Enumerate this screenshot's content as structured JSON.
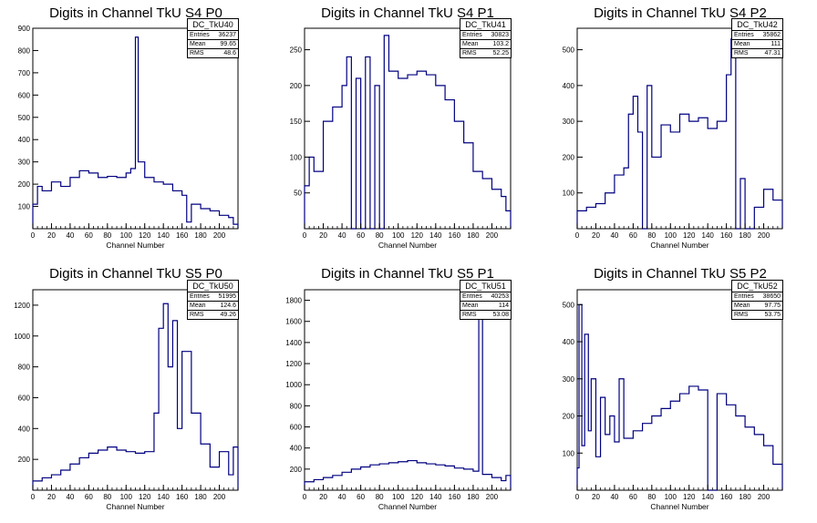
{
  "panels": [
    {
      "title": "Digits in Channel TkU S4 P0",
      "stats": {
        "name": "DC_TkU40",
        "entries": "36237",
        "mean": "99.65",
        "rms": "48.6"
      },
      "xlabel": "Channel Number",
      "xlim": [
        0,
        220
      ],
      "ylim": [
        0,
        900
      ],
      "xticks": [
        0,
        20,
        40,
        60,
        80,
        100,
        120,
        140,
        160,
        180,
        200
      ],
      "yticks": [
        100,
        200,
        300,
        400,
        500,
        600,
        700,
        800,
        900
      ]
    },
    {
      "title": "Digits in Channel TkU S4 P1",
      "stats": {
        "name": "DC_TkU41",
        "entries": "30823",
        "mean": "103.2",
        "rms": "52.25"
      },
      "xlabel": "Channel Number",
      "xlim": [
        0,
        220
      ],
      "ylim": [
        0,
        280
      ],
      "xticks": [
        0,
        20,
        40,
        60,
        80,
        100,
        120,
        140,
        160,
        180,
        200
      ],
      "yticks": [
        50,
        100,
        150,
        200,
        250
      ]
    },
    {
      "title": "Digits in Channel TkU S4 P2",
      "stats": {
        "name": "DC_TkU42",
        "entries": "35862",
        "mean": "111",
        "rms": "47.31"
      },
      "xlabel": "Channel Number",
      "xlim": [
        0,
        220
      ],
      "ylim": [
        0,
        560
      ],
      "xticks": [
        0,
        20,
        40,
        60,
        80,
        100,
        120,
        140,
        160,
        180,
        200
      ],
      "yticks": [
        100,
        200,
        300,
        400,
        500
      ]
    },
    {
      "title": "Digits in Channel TkU S5 P0",
      "stats": {
        "name": "DC_TkU50",
        "entries": "51995",
        "mean": "124.6",
        "rms": "49.26"
      },
      "xlabel": "Channel Number",
      "xlim": [
        0,
        220
      ],
      "ylim": [
        0,
        1300
      ],
      "xticks": [
        0,
        20,
        40,
        60,
        80,
        100,
        120,
        140,
        160,
        180,
        200
      ],
      "yticks": [
        200,
        400,
        600,
        800,
        1000,
        1200
      ]
    },
    {
      "title": "Digits in Channel TkU S5 P1",
      "stats": {
        "name": "DC_TkU51",
        "entries": "40253",
        "mean": "114",
        "rms": "53.08"
      },
      "xlabel": "Channel Number",
      "xlim": [
        0,
        220
      ],
      "ylim": [
        0,
        1900
      ],
      "xticks": [
        0,
        20,
        40,
        60,
        80,
        100,
        120,
        140,
        160,
        180,
        200
      ],
      "yticks": [
        200,
        400,
        600,
        800,
        1000,
        1200,
        1400,
        1600,
        1800
      ]
    },
    {
      "title": "Digits in Channel TkU S5 P2",
      "stats": {
        "name": "DC_TkU52",
        "entries": "38650",
        "mean": "97.75",
        "rms": "53.75"
      },
      "xlabel": "Channel Number",
      "xlim": [
        0,
        220
      ],
      "ylim": [
        0,
        540
      ],
      "xticks": [
        0,
        20,
        40,
        60,
        80,
        100,
        120,
        140,
        160,
        180,
        200
      ],
      "yticks": [
        100,
        200,
        300,
        400,
        500
      ]
    }
  ],
  "stat_labels": {
    "entries": "Entries",
    "mean": "Mean",
    "rms": "RMS"
  },
  "colors": {
    "histogram": "#000080",
    "axis": "#000000"
  },
  "chart_data": [
    {
      "type": "bar",
      "title": "Digits in Channel TkU S4 P0",
      "xlabel": "Channel Number",
      "ylabel": "",
      "xlim": [
        0,
        220
      ],
      "ylim": [
        0,
        900
      ],
      "bin_width": 1,
      "x": [
        0,
        5,
        10,
        20,
        30,
        40,
        50,
        60,
        70,
        80,
        90,
        100,
        105,
        110,
        113,
        120,
        130,
        140,
        150,
        160,
        165,
        170,
        180,
        190,
        200,
        210,
        215
      ],
      "values": [
        110,
        190,
        170,
        210,
        190,
        230,
        260,
        250,
        230,
        235,
        230,
        250,
        270,
        860,
        300,
        230,
        210,
        200,
        170,
        150,
        30,
        110,
        90,
        80,
        60,
        50,
        20
      ],
      "series": [
        {
          "name": "DC_TkU40",
          "x": [
            0,
            5,
            10,
            20,
            30,
            40,
            50,
            60,
            70,
            80,
            90,
            100,
            105,
            110,
            113,
            120,
            130,
            140,
            150,
            160,
            165,
            170,
            180,
            190,
            200,
            210,
            215
          ],
          "values": [
            110,
            190,
            170,
            210,
            190,
            230,
            260,
            250,
            230,
            235,
            230,
            250,
            270,
            860,
            300,
            230,
            210,
            200,
            170,
            150,
            30,
            110,
            90,
            80,
            60,
            50,
            20
          ]
        }
      ]
    },
    {
      "type": "bar",
      "title": "Digits in Channel TkU S4 P1",
      "xlabel": "Channel Number",
      "ylabel": "",
      "xlim": [
        0,
        220
      ],
      "ylim": [
        0,
        280
      ],
      "bin_width": 1,
      "x": [
        0,
        5,
        10,
        20,
        30,
        40,
        45,
        50,
        55,
        60,
        65,
        70,
        75,
        80,
        85,
        90,
        100,
        110,
        120,
        130,
        140,
        150,
        160,
        170,
        180,
        190,
        200,
        210,
        215
      ],
      "values": [
        60,
        100,
        80,
        150,
        170,
        200,
        240,
        0,
        210,
        0,
        240,
        0,
        200,
        0,
        270,
        220,
        210,
        215,
        220,
        215,
        200,
        180,
        150,
        120,
        80,
        70,
        55,
        45,
        25
      ],
      "series": [
        {
          "name": "DC_TkU41",
          "x": [
            0,
            5,
            10,
            20,
            30,
            40,
            45,
            50,
            55,
            60,
            65,
            70,
            75,
            80,
            85,
            90,
            100,
            110,
            120,
            130,
            140,
            150,
            160,
            170,
            180,
            190,
            200,
            210,
            215
          ],
          "values": [
            60,
            100,
            80,
            150,
            170,
            200,
            240,
            0,
            210,
            0,
            240,
            0,
            200,
            0,
            270,
            220,
            210,
            215,
            220,
            215,
            200,
            180,
            150,
            120,
            80,
            70,
            55,
            45,
            25
          ]
        }
      ]
    },
    {
      "type": "bar",
      "title": "Digits in Channel TkU S4 P2",
      "xlabel": "Channel Number",
      "ylabel": "",
      "xlim": [
        0,
        220
      ],
      "ylim": [
        0,
        560
      ],
      "bin_width": 1,
      "x": [
        0,
        10,
        20,
        30,
        40,
        50,
        55,
        60,
        65,
        70,
        75,
        80,
        90,
        100,
        110,
        120,
        130,
        140,
        150,
        160,
        165,
        170,
        175,
        180,
        190,
        200,
        210
      ],
      "values": [
        50,
        60,
        70,
        100,
        150,
        170,
        320,
        370,
        270,
        0,
        400,
        200,
        290,
        270,
        320,
        300,
        310,
        280,
        300,
        430,
        530,
        0,
        140,
        0,
        60,
        110,
        80
      ],
      "series": [
        {
          "name": "DC_TkU42",
          "x": [
            0,
            10,
            20,
            30,
            40,
            50,
            55,
            60,
            65,
            70,
            75,
            80,
            90,
            100,
            110,
            120,
            130,
            140,
            150,
            160,
            165,
            170,
            175,
            180,
            190,
            200,
            210
          ],
          "values": [
            50,
            60,
            70,
            100,
            150,
            170,
            320,
            370,
            270,
            0,
            400,
            200,
            290,
            270,
            320,
            300,
            310,
            280,
            300,
            430,
            530,
            0,
            140,
            0,
            60,
            110,
            80
          ]
        }
      ]
    },
    {
      "type": "bar",
      "title": "Digits in Channel TkU S5 P0",
      "xlabel": "Channel Number",
      "ylabel": "",
      "xlim": [
        0,
        220
      ],
      "ylim": [
        0,
        1300
      ],
      "bin_width": 1,
      "x": [
        0,
        10,
        20,
        30,
        40,
        50,
        60,
        70,
        80,
        90,
        100,
        110,
        120,
        130,
        135,
        140,
        145,
        150,
        155,
        160,
        170,
        180,
        190,
        200,
        210,
        215
      ],
      "values": [
        60,
        80,
        100,
        130,
        170,
        210,
        240,
        260,
        280,
        260,
        250,
        240,
        250,
        500,
        1050,
        1210,
        800,
        1100,
        400,
        900,
        500,
        300,
        150,
        250,
        100,
        280
      ],
      "series": [
        {
          "name": "DC_TkU50",
          "x": [
            0,
            10,
            20,
            30,
            40,
            50,
            60,
            70,
            80,
            90,
            100,
            110,
            120,
            130,
            135,
            140,
            145,
            150,
            155,
            160,
            170,
            180,
            190,
            200,
            210,
            215
          ],
          "values": [
            60,
            80,
            100,
            130,
            170,
            210,
            240,
            260,
            280,
            260,
            250,
            240,
            250,
            500,
            1050,
            1210,
            800,
            1100,
            400,
            900,
            500,
            300,
            150,
            250,
            100,
            280
          ]
        }
      ]
    },
    {
      "type": "bar",
      "title": "Digits in Channel TkU S5 P1",
      "xlabel": "Channel Number",
      "ylabel": "",
      "xlim": [
        0,
        220
      ],
      "ylim": [
        0,
        1900
      ],
      "bin_width": 1,
      "x": [
        0,
        10,
        20,
        30,
        40,
        50,
        60,
        70,
        80,
        90,
        100,
        110,
        120,
        130,
        140,
        150,
        160,
        170,
        180,
        186,
        190,
        200,
        210,
        215
      ],
      "values": [
        80,
        100,
        120,
        140,
        170,
        200,
        220,
        240,
        250,
        260,
        270,
        280,
        260,
        250,
        240,
        230,
        210,
        200,
        180,
        1720,
        150,
        120,
        90,
        140
      ],
      "series": [
        {
          "name": "DC_TkU51",
          "x": [
            0,
            10,
            20,
            30,
            40,
            50,
            60,
            70,
            80,
            90,
            100,
            110,
            120,
            130,
            140,
            150,
            160,
            170,
            180,
            186,
            190,
            200,
            210,
            215
          ],
          "values": [
            80,
            100,
            120,
            140,
            170,
            200,
            220,
            240,
            250,
            260,
            270,
            280,
            260,
            250,
            240,
            230,
            210,
            200,
            180,
            1720,
            150,
            120,
            90,
            140
          ]
        }
      ]
    },
    {
      "type": "bar",
      "title": "Digits in Channel TkU S5 P2",
      "xlabel": "Channel Number",
      "ylabel": "",
      "xlim": [
        0,
        220
      ],
      "ylim": [
        0,
        540
      ],
      "bin_width": 1,
      "x": [
        0,
        2,
        5,
        8,
        12,
        15,
        20,
        25,
        30,
        35,
        40,
        45,
        50,
        60,
        70,
        80,
        90,
        100,
        110,
        120,
        130,
        140,
        150,
        160,
        170,
        180,
        190,
        200,
        210
      ],
      "values": [
        60,
        500,
        120,
        420,
        160,
        300,
        90,
        250,
        150,
        200,
        130,
        300,
        140,
        160,
        180,
        200,
        220,
        240,
        260,
        280,
        270,
        0,
        260,
        230,
        200,
        170,
        150,
        120,
        70
      ],
      "series": [
        {
          "name": "DC_TkU52",
          "x": [
            0,
            2,
            5,
            8,
            12,
            15,
            20,
            25,
            30,
            35,
            40,
            45,
            50,
            60,
            70,
            80,
            90,
            100,
            110,
            120,
            130,
            140,
            150,
            160,
            170,
            180,
            190,
            200,
            210
          ],
          "values": [
            60,
            500,
            120,
            420,
            160,
            300,
            90,
            250,
            150,
            200,
            130,
            300,
            140,
            160,
            180,
            200,
            220,
            240,
            260,
            280,
            270,
            0,
            260,
            230,
            200,
            170,
            150,
            120,
            70
          ]
        }
      ]
    }
  ]
}
